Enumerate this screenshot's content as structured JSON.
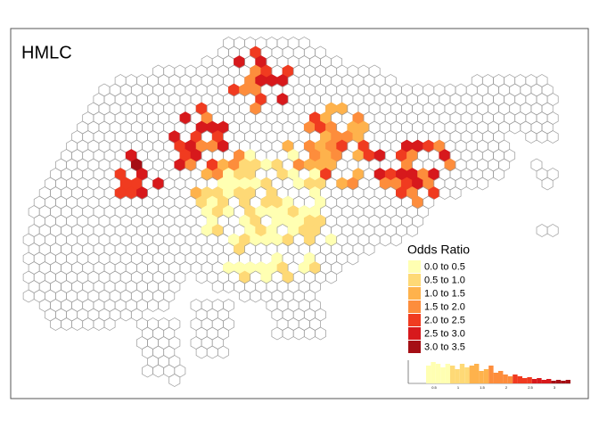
{
  "map": {
    "title": "HMLC",
    "legend": {
      "title": "Odds Ratio",
      "items": [
        {
          "label": "0.0 to 0.5",
          "color": "#ffffb2"
        },
        {
          "label": "0.5 to 1.0",
          "color": "#fed976"
        },
        {
          "label": "1.0 to 1.5",
          "color": "#feb24c"
        },
        {
          "label": "1.5 to 2.0",
          "color": "#fd8d3c"
        },
        {
          "label": "2.0 to 2.5",
          "color": "#f03b20"
        },
        {
          "label": "2.5 to 3.0",
          "color": "#d7191c"
        },
        {
          "label": "3.0 to 3.5",
          "color": "#a50f15"
        }
      ]
    },
    "histogram": {
      "ticks": [
        "0.5",
        "1",
        "1.5",
        "2",
        "2.5",
        "3"
      ]
    }
  }
}
